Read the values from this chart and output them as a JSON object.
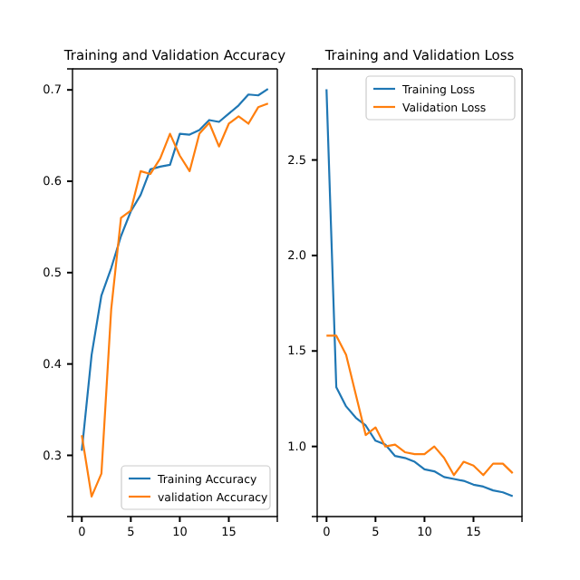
{
  "chart_data": [
    {
      "type": "line",
      "title": "Training and Validation Accuracy",
      "x": [
        0,
        1,
        2,
        3,
        4,
        5,
        6,
        7,
        8,
        9,
        10,
        11,
        12,
        13,
        14,
        15,
        16,
        17,
        18,
        19
      ],
      "series": [
        {
          "name": "Training Accuracy",
          "color": "#1f77b4",
          "values": [
            0.305,
            0.41,
            0.475,
            0.505,
            0.54,
            0.567,
            0.585,
            0.613,
            0.616,
            0.618,
            0.652,
            0.651,
            0.656,
            0.667,
            0.665,
            0.674,
            0.683,
            0.695,
            0.694,
            0.701
          ]
        },
        {
          "name": "validation Accuracy",
          "color": "#ff7f0e",
          "values": [
            0.322,
            0.255,
            0.28,
            0.46,
            0.56,
            0.568,
            0.611,
            0.608,
            0.625,
            0.652,
            0.628,
            0.611,
            0.652,
            0.664,
            0.638,
            0.663,
            0.671,
            0.663,
            0.681,
            0.685
          ]
        }
      ],
      "xlim": [
        -0.95,
        19.95
      ],
      "xticks": [
        0,
        5,
        10,
        15
      ],
      "ylim": [
        0.233,
        0.723
      ],
      "yticks": [
        0.3,
        0.4,
        0.5,
        0.6,
        0.7
      ],
      "legend": "bottom right",
      "grid": false
    },
    {
      "type": "line",
      "title": "Training and Validation Loss",
      "x": [
        0,
        1,
        2,
        3,
        4,
        5,
        6,
        7,
        8,
        9,
        10,
        11,
        12,
        13,
        14,
        15,
        16,
        17,
        18,
        19
      ],
      "series": [
        {
          "name": "Training Loss",
          "color": "#1f77b4",
          "values": [
            2.87,
            1.31,
            1.21,
            1.15,
            1.11,
            1.03,
            1.01,
            0.95,
            0.94,
            0.92,
            0.88,
            0.87,
            0.84,
            0.83,
            0.82,
            0.8,
            0.79,
            0.77,
            0.76,
            0.74
          ]
        },
        {
          "name": "Validation Loss",
          "color": "#ff7f0e",
          "values": [
            1.58,
            1.58,
            1.48,
            1.27,
            1.06,
            1.1,
            1.0,
            1.01,
            0.97,
            0.96,
            0.96,
            1.0,
            0.94,
            0.85,
            0.92,
            0.9,
            0.85,
            0.91,
            0.91,
            0.86
          ]
        }
      ],
      "xlim": [
        -0.95,
        19.95
      ],
      "xticks": [
        0,
        5,
        10,
        15
      ],
      "ylim": [
        0.633,
        2.977
      ],
      "yticks": [
        {
          "value": 1,
          "label": "1.0"
        },
        {
          "value": 1.5,
          "label": "1.5"
        },
        {
          "value": 2,
          "label": "2.0"
        },
        {
          "value": 2.5,
          "label": "2.5"
        }
      ],
      "legend": "top right",
      "grid": false
    }
  ]
}
